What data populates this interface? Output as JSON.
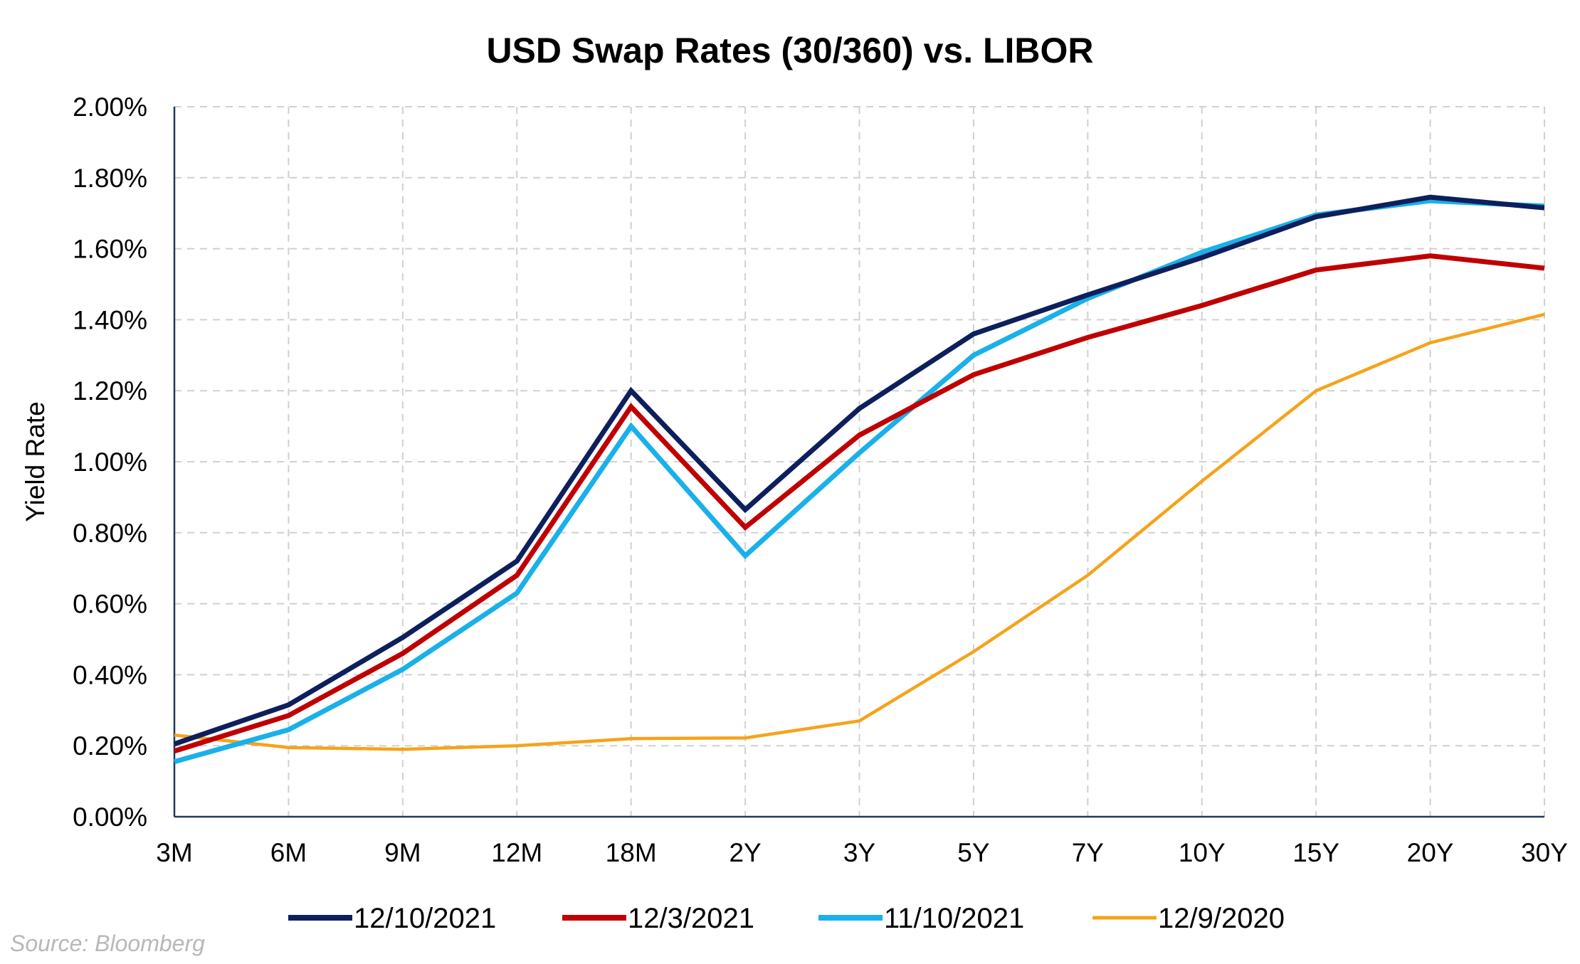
{
  "chart_data": {
    "type": "line",
    "title": "USD Swap Rates (30/360) vs. LIBOR",
    "xlabel": "",
    "ylabel": "Yield Rate",
    "categories": [
      "3M",
      "6M",
      "9M",
      "12M",
      "18M",
      "2Y",
      "3Y",
      "5Y",
      "7Y",
      "10Y",
      "15Y",
      "20Y",
      "30Y"
    ],
    "ylim": [
      0,
      2.0
    ],
    "yticks": [
      "0.00%",
      "0.20%",
      "0.40%",
      "0.60%",
      "0.80%",
      "1.00%",
      "1.20%",
      "1.40%",
      "1.60%",
      "1.80%",
      "2.00%"
    ],
    "grid": true,
    "legend_position": "bottom",
    "series": [
      {
        "name": "12/10/2021",
        "color": "#0d1f5c",
        "values": [
          0.205,
          0.315,
          0.505,
          0.72,
          1.2,
          0.865,
          1.15,
          1.36,
          1.47,
          1.575,
          1.69,
          1.745,
          1.715
        ]
      },
      {
        "name": "12/3/2021",
        "color": "#c00000",
        "values": [
          0.185,
          0.285,
          0.46,
          0.68,
          1.155,
          0.815,
          1.075,
          1.245,
          1.35,
          1.44,
          1.54,
          1.58,
          1.545
        ]
      },
      {
        "name": "11/10/2021",
        "color": "#1ab0ea",
        "values": [
          0.155,
          0.245,
          0.415,
          0.63,
          1.1,
          0.735,
          1.025,
          1.3,
          1.46,
          1.59,
          1.695,
          1.735,
          1.72
        ]
      },
      {
        "name": "12/9/2020",
        "color": "#f5a31b",
        "values": [
          0.23,
          0.195,
          0.19,
          0.2,
          0.22,
          0.222,
          0.27,
          0.465,
          0.68,
          0.945,
          1.2,
          1.335,
          1.415
        ]
      }
    ]
  },
  "source_note": "Source: Bloomberg"
}
